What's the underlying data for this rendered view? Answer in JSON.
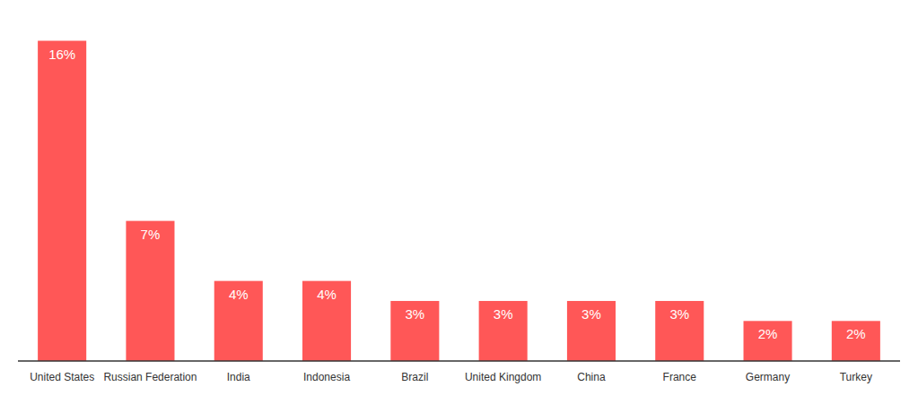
{
  "chart_data": {
    "type": "bar",
    "categories": [
      "United States",
      "Russian Federation",
      "India",
      "Indonesia",
      "Brazil",
      "United Kingdom",
      "China",
      "France",
      "Germany",
      "Turkey"
    ],
    "values": [
      16,
      7,
      4,
      4,
      3,
      3,
      3,
      3,
      2,
      2
    ],
    "value_labels": [
      "16%",
      "7%",
      "4%",
      "4%",
      "3%",
      "3%",
      "3%",
      "3%",
      "2%",
      "2%"
    ],
    "color": "#FF5757",
    "ylim": [
      0,
      17.5
    ],
    "data_labels": true,
    "tick_labels": "x"
  }
}
